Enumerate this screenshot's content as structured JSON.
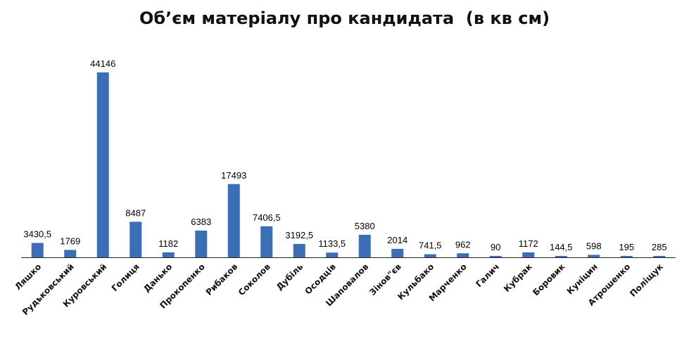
{
  "chart_data": {
    "type": "bar",
    "title": "Об’єм матеріалу про кандидата  (в кв см)",
    "categories": [
      "Ляшко",
      "Рудьковський",
      "Куровський",
      "Голиця",
      "Данько",
      "Прокопенко",
      "Рибаков",
      "Соколов",
      "Дубіль",
      "Осодців",
      "Шаповалов",
      "Зінов\"єв",
      "Кульбако",
      "Марченко",
      "Галич",
      "Кубрак",
      "Боровик",
      "Куніцин",
      "Атрошенко",
      "Поліщук"
    ],
    "values": [
      3430.5,
      1769,
      44146,
      8487,
      1182,
      6383,
      17493,
      7406.5,
      3192.5,
      1133.5,
      5380,
      2014,
      741.5,
      962,
      90,
      1172,
      144.5,
      598,
      195,
      285
    ],
    "value_labels": [
      "3430,5",
      "1769",
      "44146",
      "8487",
      "1182",
      "6383",
      "17493",
      "7406,5",
      "3192,5",
      "1133,5",
      "5380",
      "2014",
      "741,5",
      "962",
      "90",
      "1172",
      "144,5",
      "598",
      "195",
      "285"
    ],
    "ylim": [
      0,
      44146
    ],
    "grid": false,
    "legend": "none",
    "bar_color": "#3b6eb4"
  }
}
